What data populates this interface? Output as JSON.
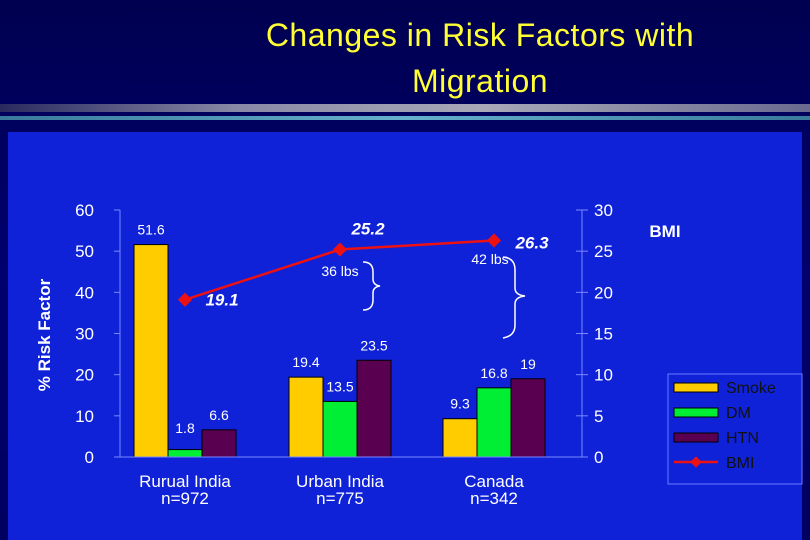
{
  "title": {
    "line1": "Changes in Risk Factors with",
    "line2": "Migration"
  },
  "chart_data": {
    "type": "bar",
    "categories": [
      "Rurual India",
      "Urban India",
      "Canada"
    ],
    "category_sub": [
      "n=972",
      "n=775",
      "n=342"
    ],
    "ylabel": "% Risk Factor",
    "ylim": [
      0,
      60
    ],
    "y_ticks": [
      "0",
      "10",
      "20",
      "30",
      "40",
      "50",
      "60"
    ],
    "y2label": "BMI",
    "y2lim": [
      0,
      30
    ],
    "y2_ticks": [
      "0",
      "5",
      "10",
      "15",
      "20",
      "25",
      "30"
    ],
    "series": [
      {
        "name": "Smoke",
        "values": [
          51.6,
          19.4,
          9.3
        ],
        "labels": [
          "51.6",
          "19.4",
          "9.3"
        ],
        "color": "#ffcc00"
      },
      {
        "name": "DM",
        "values": [
          1.8,
          13.5,
          16.8
        ],
        "labels": [
          "1.8",
          "13.5",
          "16.8"
        ],
        "color": "#00ee33"
      },
      {
        "name": "HTN",
        "values": [
          6.6,
          23.5,
          19
        ],
        "labels": [
          "6.6",
          "23.5",
          "19"
        ],
        "color": "#5a0050"
      }
    ],
    "line_series": {
      "name": "BMI",
      "values": [
        19.1,
        25.2,
        26.3
      ],
      "labels": [
        "19.1",
        "25.2",
        "26.3"
      ],
      "color": "#ee1111",
      "axis": "y2"
    },
    "annotations": [
      "36 lbs",
      "42 lbs"
    ],
    "legend_position": "right",
    "grid": false
  }
}
